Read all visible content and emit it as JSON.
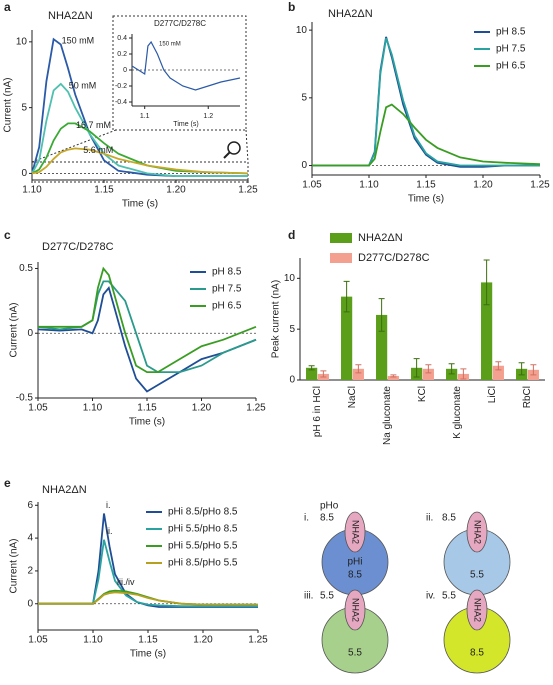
{
  "chart_data": [
    {
      "type": "line",
      "panel": "a",
      "title": "NHA2ΔN",
      "xlabel": "Time (s)",
      "ylabel": "Current (nA)",
      "legend": "inline",
      "xlim": [
        1.1,
        1.25
      ],
      "ylim": [
        -0.5,
        10.9
      ],
      "xticks": [
        {
          "value": 1.1,
          "label": "1.10"
        },
        1.15,
        {
          "value": 1.2,
          "label": "1.20"
        },
        1.25
      ],
      "yticks": [
        0,
        5,
        10
      ],
      "x": [
        1.1,
        1.105,
        1.11,
        1.115,
        1.12,
        1.125,
        1.13,
        1.14,
        1.15,
        1.16,
        1.18,
        1.2,
        1.22,
        1.25
      ],
      "series": [
        {
          "name": "150 mM",
          "color": "#2b5aa8",
          "values": [
            0,
            2,
            7,
            10.2,
            9.8,
            8,
            6,
            3,
            1,
            0.2,
            -0.1,
            -0.2,
            -0.2,
            -0.2
          ]
        },
        {
          "name": "50 mM",
          "color": "#4fc0b0",
          "values": [
            0,
            1,
            4,
            6.3,
            6.8,
            6.2,
            5,
            3,
            1.5,
            0.6,
            0,
            -0.2,
            -0.2,
            -0.2
          ]
        },
        {
          "name": "16.7 mM",
          "color": "#3aaa35",
          "values": [
            0,
            0.3,
            1.2,
            2.5,
            3.4,
            3.8,
            3.8,
            3.2,
            2.3,
            1.5,
            0.6,
            0.2,
            0.1,
            0
          ]
        },
        {
          "name": "5.6 mM",
          "color": "#c8a828",
          "values": [
            0,
            0.1,
            0.5,
            1.1,
            1.6,
            1.8,
            1.9,
            1.8,
            1.5,
            1.1,
            0.6,
            0.3,
            0.1,
            0
          ]
        }
      ]
    },
    {
      "type": "line",
      "title": "D277C/D278C",
      "xlabel": "Time (s)",
      "legend": "inline",
      "xlim": [
        1.08,
        1.25
      ],
      "ylim": [
        -0.45,
        0.45
      ],
      "xticks": [
        1.1,
        1.2
      ],
      "yticks": [
        0.4,
        0.2,
        0,
        -0.2,
        -0.4
      ],
      "x": [
        1.08,
        1.09,
        1.1,
        1.105,
        1.11,
        1.12,
        1.13,
        1.14,
        1.16,
        1.18,
        1.2,
        1.22,
        1.25
      ],
      "series": [
        {
          "name": "150 mM",
          "color": "#2b5aa8",
          "values": [
            0.05,
            0,
            -0.05,
            0.3,
            0.35,
            0.2,
            0,
            -0.1,
            -0.2,
            -0.25,
            -0.2,
            -0.15,
            -0.1
          ]
        }
      ]
    },
    {
      "type": "line",
      "panel": "b",
      "title": "NHA2ΔN",
      "xlabel": "Time (s)",
      "legend": "upper right",
      "xlim": [
        1.05,
        1.25
      ],
      "ylim": [
        -0.7,
        10.6
      ],
      "xticks": [
        1.05,
        {
          "value": 1.1,
          "label": "1.10"
        },
        1.15,
        {
          "value": 1.2,
          "label": "1.20"
        },
        1.25
      ],
      "yticks": [
        0,
        5,
        10
      ],
      "x": [
        1.05,
        1.08,
        1.1,
        1.105,
        1.11,
        1.115,
        1.12,
        1.13,
        1.14,
        1.15,
        1.16,
        1.18,
        1.2,
        1.22,
        1.25
      ],
      "series": [
        {
          "name": "pH 8.5",
          "color": "#1f4e96",
          "values": [
            0,
            0,
            0,
            1,
            7,
            9.5,
            8,
            4.5,
            2,
            0.8,
            0.2,
            -0.1,
            -0.1,
            0,
            0
          ]
        },
        {
          "name": "pH 7.5",
          "color": "#2aa3a0",
          "values": [
            0,
            0,
            0,
            0.9,
            6.8,
            9.4,
            8.2,
            4.8,
            2.2,
            0.9,
            0.3,
            0,
            0,
            0,
            0
          ]
        },
        {
          "name": "pH 6.5",
          "color": "#3a9d23",
          "values": [
            0,
            0,
            0,
            0.5,
            2.5,
            4.3,
            4.5,
            3.8,
            2.8,
            1.9,
            1.3,
            0.6,
            0.3,
            0.2,
            0.1
          ]
        }
      ]
    },
    {
      "type": "line",
      "panel": "c",
      "title": "D277C/D278C",
      "xlabel": "Time (s)",
      "ylabel": "Current (nA)",
      "legend": "upper right",
      "xlim": [
        1.05,
        1.25
      ],
      "ylim": [
        -0.5,
        0.55
      ],
      "xticks": [
        1.05,
        {
          "value": 1.1,
          "label": "1.10"
        },
        1.15,
        {
          "value": 1.2,
          "label": "1.20"
        },
        1.25
      ],
      "yticks": [
        -0.5,
        0,
        0.5
      ],
      "x": [
        1.05,
        1.07,
        1.09,
        1.1,
        1.105,
        1.11,
        1.115,
        1.12,
        1.13,
        1.14,
        1.15,
        1.16,
        1.18,
        1.2,
        1.22,
        1.25
      ],
      "series": [
        {
          "name": "pH 8.5",
          "color": "#1f4e96",
          "values": [
            0.03,
            0.02,
            0.03,
            0,
            0.1,
            0.3,
            0.35,
            0.2,
            -0.1,
            -0.35,
            -0.45,
            -0.4,
            -0.3,
            -0.2,
            -0.15,
            -0.05
          ]
        },
        {
          "name": "pH 7.5",
          "color": "#2a9a8c",
          "values": [
            0.05,
            0.03,
            0.05,
            0.1,
            0.3,
            0.4,
            0.4,
            0.35,
            0.25,
            0,
            -0.25,
            -0.3,
            -0.3,
            -0.25,
            -0.15,
            -0.05
          ]
        },
        {
          "name": "pH 6.5",
          "color": "#3a9d23",
          "values": [
            0.05,
            0.05,
            0.05,
            0.1,
            0.35,
            0.5,
            0.45,
            0.3,
            0,
            -0.25,
            -0.3,
            -0.3,
            -0.2,
            -0.1,
            -0.05,
            0.05
          ]
        }
      ]
    },
    {
      "type": "bar",
      "panel": "d",
      "ylabel": "Peak current (nA)",
      "legend": "top",
      "ylim": [
        0,
        12
      ],
      "yticks": [
        0,
        5,
        10
      ],
      "categories": [
        "pH 6 in HCl",
        "NaCl",
        "Na gluconate",
        "KCl",
        "K gluconate",
        "LiCl",
        "RbCl"
      ],
      "series": [
        {
          "name": "NHA2ΔN",
          "color": "#5a9e1a",
          "values": [
            1.2,
            8.2,
            6.4,
            1.2,
            1.1,
            9.6,
            1.1
          ],
          "errors": [
            0.2,
            1.5,
            1.6,
            0.9,
            0.5,
            2.2,
            0.6
          ]
        },
        {
          "name": "D277C/D278C",
          "color": "#f4a090",
          "values": [
            0.6,
            1.1,
            0.4,
            1.1,
            0.6,
            1.4,
            1.0
          ],
          "errors": [
            0.3,
            0.4,
            0.1,
            0.4,
            0.5,
            0.4,
            0.5
          ]
        }
      ]
    },
    {
      "type": "line",
      "panel": "e",
      "title": "NHA2ΔN",
      "xlabel": "Time (s)",
      "ylabel": "Current (nA)",
      "legend": "upper right",
      "xlim": [
        1.05,
        1.25
      ],
      "ylim": [
        -1.6,
        6.2
      ],
      "xticks": [
        1.05,
        {
          "value": 1.1,
          "label": "1.10"
        },
        1.15,
        {
          "value": 1.2,
          "label": "1.20"
        },
        1.25
      ],
      "yticks": [
        0,
        2,
        4,
        6
      ],
      "annotations": [
        "i.",
        "ii.",
        "iii./iv"
      ],
      "x": [
        1.05,
        1.08,
        1.1,
        1.105,
        1.11,
        1.115,
        1.12,
        1.13,
        1.14,
        1.15,
        1.16,
        1.18,
        1.2,
        1.22,
        1.25
      ],
      "series": [
        {
          "name": "pHi 8.5/pHo 8.5",
          "color": "#1f4e96",
          "values": [
            0,
            0,
            0,
            2,
            5.5,
            3.5,
            1.8,
            0.6,
            0.1,
            -0.1,
            -0.2,
            -0.2,
            -0.2,
            -0.2,
            -0.2
          ]
        },
        {
          "name": "pHi 5.5/pHo 8.5",
          "color": "#2aa3a0",
          "values": [
            0,
            0,
            0,
            1.5,
            3.9,
            2.6,
            1.4,
            0.5,
            0.1,
            -0.05,
            -0.1,
            -0.15,
            -0.15,
            -0.15,
            -0.15
          ]
        },
        {
          "name": "pHi 5.5/pHo 5.5",
          "color": "#3a9d23",
          "values": [
            0,
            0,
            0,
            0.3,
            0.6,
            0.75,
            0.8,
            0.75,
            0.6,
            0.4,
            0.2,
            0,
            -0.05,
            -0.05,
            -0.05
          ]
        },
        {
          "name": "pHi 8.5/pHo 5.5",
          "color": "#b5a020",
          "values": [
            0,
            0,
            0,
            0.25,
            0.55,
            0.65,
            0.7,
            0.65,
            0.55,
            0.35,
            0.2,
            0,
            -0.05,
            -0.05,
            -0.05
          ]
        }
      ]
    }
  ],
  "diagram": {
    "cells": [
      {
        "label": "i.",
        "outside_name": "pHo",
        "outside": "8.5",
        "inside_name": "pHi",
        "inside": "8.5",
        "protein": "NHA2",
        "color": "#6b8fd0"
      },
      {
        "label": "ii.",
        "outside": "8.5",
        "inside": "5.5",
        "protein": "NHA2",
        "color": "#a8c8e8"
      },
      {
        "label": "iii.",
        "outside": "5.5",
        "inside": "5.5",
        "protein": "NHA2",
        "color": "#a8d08d"
      },
      {
        "label": "iv.",
        "outside": "5.5",
        "inside": "8.5",
        "protein": "NHA2",
        "color": "#d4e62a"
      }
    ]
  }
}
